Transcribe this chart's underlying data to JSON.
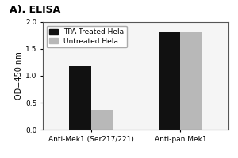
{
  "title": "A). ELISA",
  "groups": [
    "Anti-Mek1 (Ser217/221)",
    "Anti-pan Mek1"
  ],
  "series": [
    {
      "label": "TPA Treated Hela",
      "color": "#111111",
      "values": [
        1.17,
        1.83
      ]
    },
    {
      "label": "Untreated Hela",
      "color": "#b8b8b8",
      "values": [
        0.37,
        1.82
      ]
    }
  ],
  "ylabel": "OD=450 nm",
  "ylim": [
    0.0,
    2.0
  ],
  "yticks": [
    0.0,
    0.5,
    1.0,
    1.5,
    2.0
  ],
  "bar_width": 0.28,
  "group_centers": [
    0.55,
    1.7
  ],
  "background_color": "#f5f5f5",
  "title_fontsize": 9,
  "axis_fontsize": 7,
  "tick_fontsize": 6.5,
  "legend_fontsize": 6.5
}
